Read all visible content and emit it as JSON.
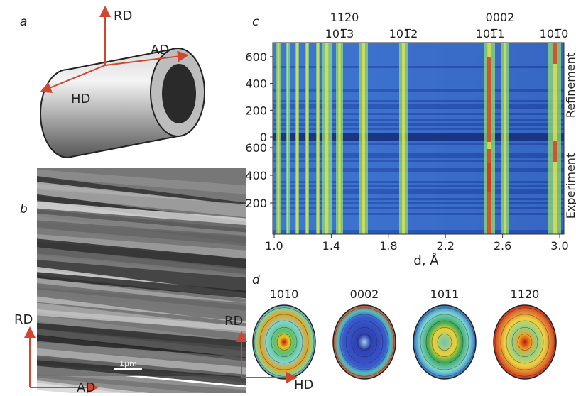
{
  "panel_a": {
    "label": "a",
    "axes": [
      "RD",
      "AD",
      "HD"
    ]
  },
  "panel_b": {
    "label": "b",
    "scale_bar": "1μm",
    "axes": [
      "RD",
      "AD"
    ]
  },
  "panel_c": {
    "label": "c",
    "peaks_top": [
      "112̅0",
      "0002"
    ],
    "peaks_bottom": [
      "101̅3",
      "101̅2",
      "101̅1",
      "101̅0"
    ],
    "y_ticks_refinement": [
      "0",
      "200",
      "400",
      "600"
    ],
    "y_ticks_experiment": [
      "200",
      "400",
      "600"
    ],
    "x_ticks": [
      "1.0",
      "1.4",
      "1.8",
      "2.2",
      "2.6",
      "3.0"
    ],
    "x_label": "d, Å",
    "sections": [
      "Refinement",
      "Experiment"
    ]
  },
  "panel_d": {
    "label": "d",
    "poles": [
      "101̅0",
      "0002",
      "101̅1",
      "112̅0"
    ],
    "axes": [
      "RD",
      "HD"
    ]
  }
}
